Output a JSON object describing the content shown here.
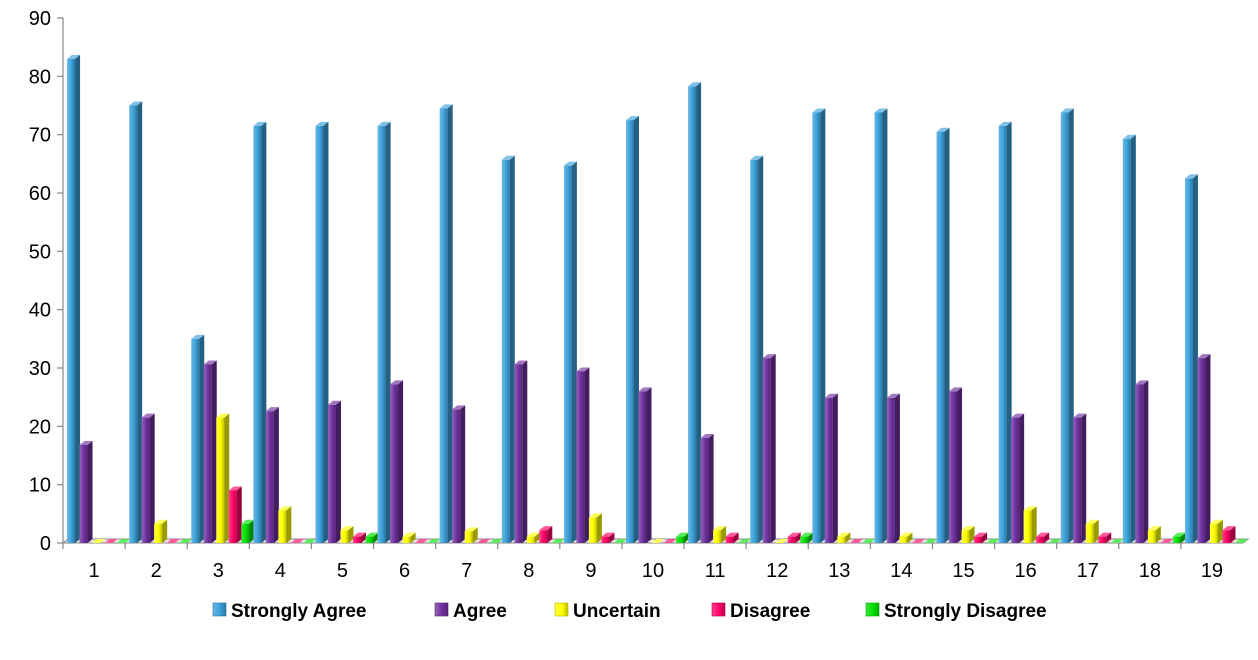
{
  "chart_data": {
    "type": "bar",
    "title": "",
    "xlabel": "",
    "ylabel": "",
    "ylim": [
      0,
      90
    ],
    "y_ticks": [
      "0",
      "10",
      "20",
      "30",
      "40",
      "50",
      "60",
      "70",
      "80",
      "90"
    ],
    "categories": [
      "1",
      "2",
      "3",
      "4",
      "5",
      "6",
      "7",
      "8",
      "9",
      "10",
      "11",
      "12",
      "13",
      "14",
      "15",
      "16",
      "17",
      "18",
      "19"
    ],
    "grid": false,
    "legend_position": "bottom",
    "series": [
      {
        "name": "Strongly Agree",
        "color": "#3AA0DA",
        "values": [
          83,
          75,
          35,
          71.5,
          71.5,
          71.5,
          74.5,
          65.7,
          64.7,
          72.5,
          78.3,
          65.7,
          73.8,
          73.8,
          70.5,
          71.5,
          73.8,
          69.3,
          62.5
        ]
      },
      {
        "name": "Agree",
        "color": "#7030A0",
        "values": [
          16.8,
          21.5,
          30.6,
          22.6,
          23.7,
          27.2,
          22.9,
          30.6,
          29.4,
          26,
          18,
          31.7,
          24.9,
          24.9,
          26,
          21.5,
          21.5,
          27.2,
          31.7
        ]
      },
      {
        "name": "Uncertain",
        "color": "#FFFF00",
        "values": [
          0,
          3.3,
          21.5,
          5.6,
          2.2,
          1.1,
          2,
          1.1,
          4.4,
          0,
          2.2,
          0,
          1.1,
          1.1,
          2.2,
          5.6,
          3.3,
          2.2,
          3.3
        ]
      },
      {
        "name": "Disagree",
        "color": "#FF0066",
        "values": [
          0,
          0,
          9,
          0,
          1.1,
          0,
          0,
          2.2,
          1.1,
          0,
          1.1,
          1.1,
          0,
          0,
          1.1,
          1.1,
          1.1,
          0,
          2.2
        ]
      },
      {
        "name": "Strongly Disagree",
        "color": "#00E000",
        "values": [
          0,
          0,
          3.3,
          0,
          1.1,
          0,
          0,
          0,
          0,
          1.1,
          0,
          1.1,
          0,
          0,
          0,
          0,
          0,
          1.1,
          0
        ]
      }
    ]
  }
}
